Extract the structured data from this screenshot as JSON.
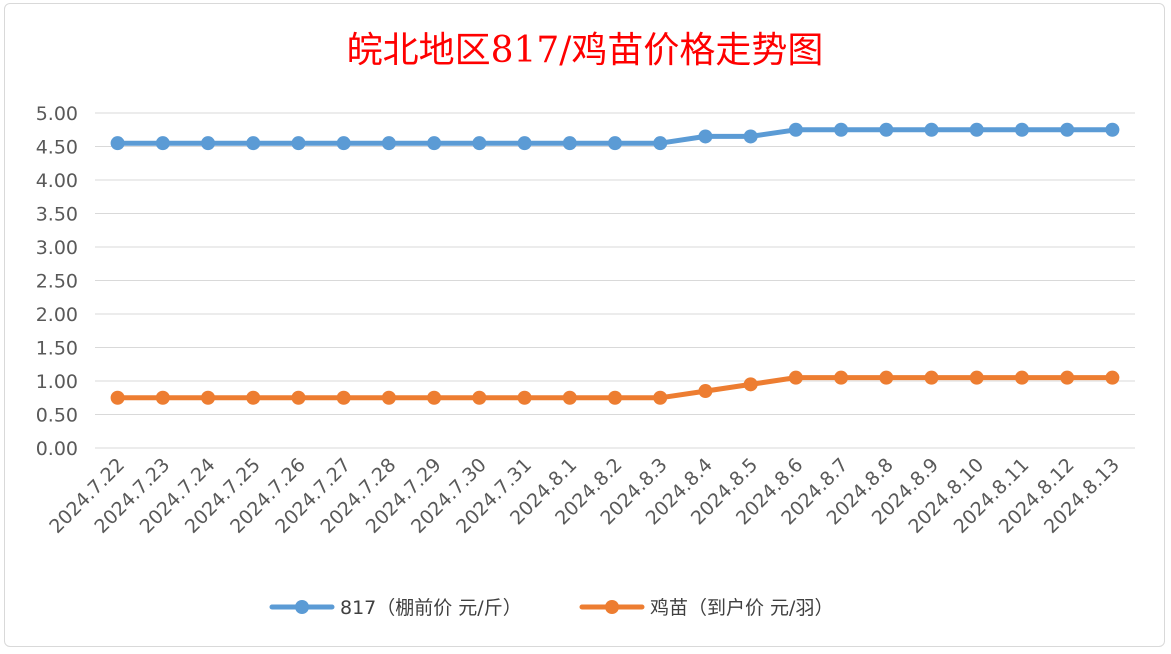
{
  "chart_data": {
    "type": "line",
    "title": "皖北地区817/鸡苗价格走势图",
    "xlabel": "",
    "ylabel": "",
    "ylim": [
      0,
      5
    ],
    "yticks": [
      "0.00",
      "0.50",
      "1.00",
      "1.50",
      "2.00",
      "2.50",
      "3.00",
      "3.50",
      "4.00",
      "4.50",
      "5.00"
    ],
    "categories": [
      "2024.7.22",
      "2024.7.23",
      "2024.7.24",
      "2024.7.25",
      "2024.7.26",
      "2024.7.27",
      "2024.7.28",
      "2024.7.29",
      "2024.7.30",
      "2024.7.31",
      "2024.8.1",
      "2024.8.2",
      "2024.8.3",
      "2024.8.4",
      "2024.8.5",
      "2024.8.6",
      "2024.8.7",
      "2024.8.8",
      "2024.8.9",
      "2024.8.10",
      "2024.8.11",
      "2024.8.12",
      "2024.8.13"
    ],
    "series": [
      {
        "name": "817（棚前价 元/斤）",
        "color": "#5b9bd5",
        "values": [
          4.55,
          4.55,
          4.55,
          4.55,
          4.55,
          4.55,
          4.55,
          4.55,
          4.55,
          4.55,
          4.55,
          4.55,
          4.55,
          4.65,
          4.65,
          4.75,
          4.75,
          4.75,
          4.75,
          4.75,
          4.75,
          4.75,
          4.75
        ]
      },
      {
        "name": "鸡苗（到户价 元/羽）",
        "color": "#ed7d31",
        "values": [
          0.75,
          0.75,
          0.75,
          0.75,
          0.75,
          0.75,
          0.75,
          0.75,
          0.75,
          0.75,
          0.75,
          0.75,
          0.75,
          0.85,
          0.95,
          1.05,
          1.05,
          1.05,
          1.05,
          1.05,
          1.05,
          1.05,
          1.05
        ]
      }
    ],
    "grid": true,
    "legend": "bottom"
  }
}
